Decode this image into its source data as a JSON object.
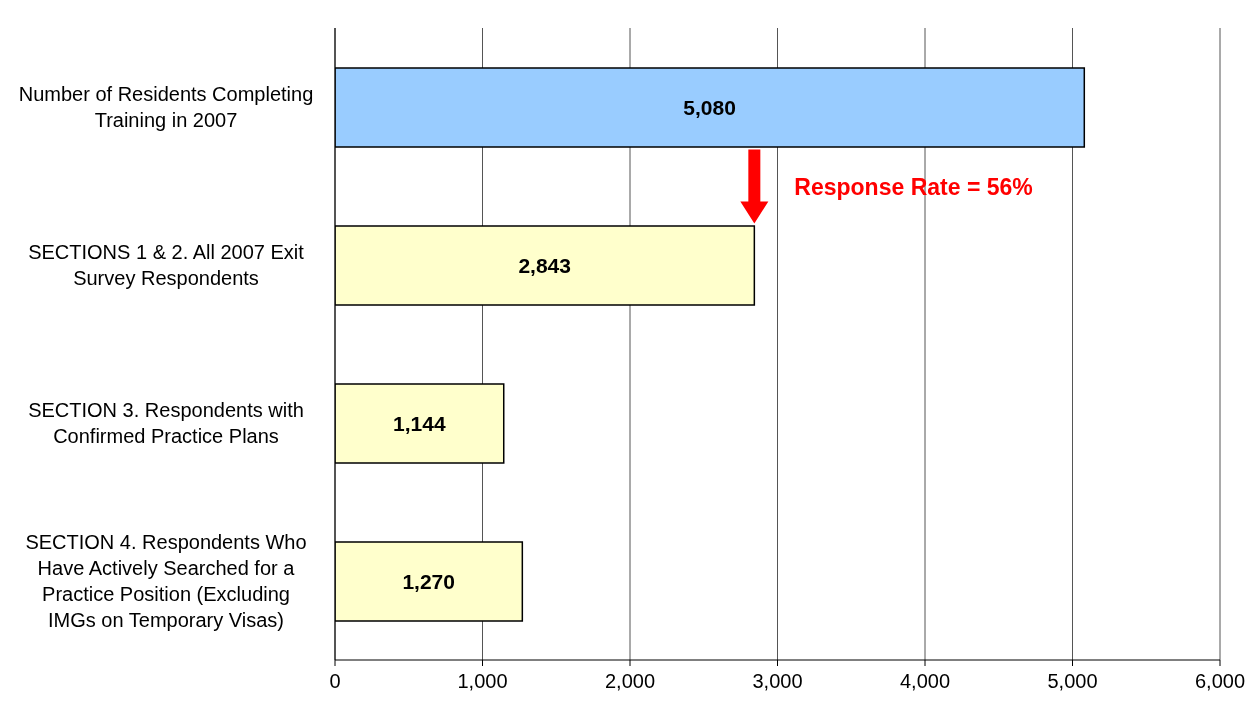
{
  "chart_data": {
    "type": "bar",
    "orientation": "horizontal",
    "categories": [
      "Number of Residents Completing Training in 2007",
      "SECTIONS 1 & 2. All 2007 Exit Survey Respondents",
      "SECTION 3. Respondents with Confirmed Practice Plans",
      "SECTION 4. Respondents Who Have Actively Searched for a Practice Position (Excluding IMGs on Temporary Visas)"
    ],
    "values": [
      5080,
      2843,
      1144,
      1270
    ],
    "colors": [
      "#99ccff",
      "#ffffcc",
      "#ffffcc",
      "#ffffcc"
    ],
    "value_labels": [
      "5,080",
      "2,843",
      "1,144",
      "1,270"
    ],
    "xlim": [
      0,
      6000
    ],
    "xticks": [
      0,
      {
        "value": 1000,
        "label": "1,000"
      },
      {
        "value": 2000,
        "label": "2,000"
      },
      {
        "value": 3000,
        "label": "3,000"
      },
      {
        "value": 4000,
        "label": "4,000"
      },
      {
        "value": 5000,
        "label": "5,000"
      },
      {
        "value": 6000,
        "label": "6,000"
      }
    ],
    "grid": "x",
    "annotations": [
      "Response Rate = 56%"
    ]
  }
}
